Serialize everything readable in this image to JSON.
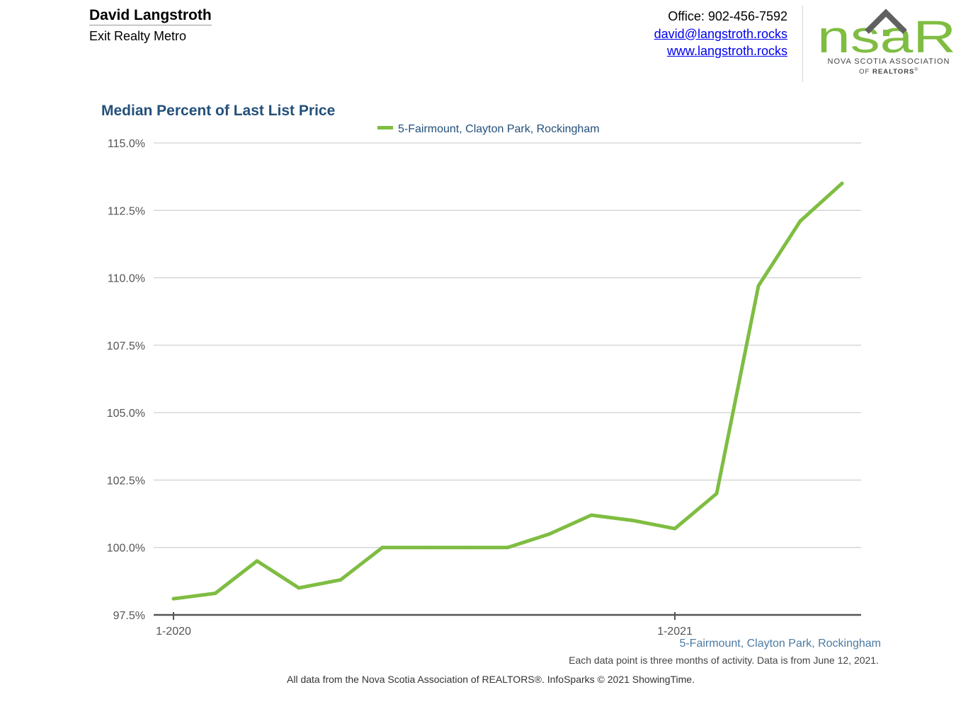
{
  "header": {
    "agent_name": "David Langstroth",
    "agent_company": "Exit Realty Metro",
    "office_phone": "Office: 902-456-7592",
    "email": "david@langstroth.rocks",
    "website": "www.langstroth.rocks",
    "logo_text": "nsaR",
    "logo_assoc_line1": "NOVA SCOTIA ASSOCIATION",
    "logo_assoc_line2_prefix": "OF",
    "logo_assoc_line2_bold": "REALTORS",
    "logo_assoc_line2_mark": "®",
    "logo_color": "#7fbd42",
    "logo_roof_color": "#606060"
  },
  "chart_data": {
    "type": "line",
    "title": "Median Percent of Last List Price",
    "xlabel": "",
    "ylabel": "",
    "ylim": [
      97.5,
      115.0
    ],
    "y_ticks": [
      "97.5%",
      "100.0%",
      "102.5%",
      "105.0%",
      "107.5%",
      "110.0%",
      "112.5%",
      "115.0%"
    ],
    "y_tick_values": [
      97.5,
      100.0,
      102.5,
      105.0,
      107.5,
      110.0,
      112.5,
      115.0
    ],
    "x": [
      "1-2020",
      "2-2020",
      "3-2020",
      "4-2020",
      "5-2020",
      "6-2020",
      "7-2020",
      "8-2020",
      "9-2020",
      "10-2020",
      "11-2020",
      "12-2020",
      "1-2021",
      "2-2021",
      "3-2021",
      "4-2021",
      "5-2021"
    ],
    "x_tick_labels": [
      {
        "label": "1-2020",
        "index": 0
      },
      {
        "label": "1-2021",
        "index": 12
      }
    ],
    "grid": true,
    "legend_position": "top-center",
    "series": [
      {
        "name": "5-Fairmount, Clayton Park, Rockingham",
        "color": "#7fbd42",
        "values": [
          98.1,
          98.3,
          99.5,
          98.5,
          98.8,
          100.0,
          100.0,
          100.0,
          100.0,
          100.5,
          101.2,
          101.0,
          100.7,
          102.0,
          109.7,
          112.1,
          113.5
        ]
      }
    ]
  },
  "footer": {
    "series_label": "5-Fairmount, Clayton Park, Rockingham",
    "note": "Each data point is three months of activity. Data is from June 12, 2021.",
    "attribution": "All data from the Nova Scotia Association of REALTORS®. InfoSparks © 2021 ShowingTime."
  }
}
